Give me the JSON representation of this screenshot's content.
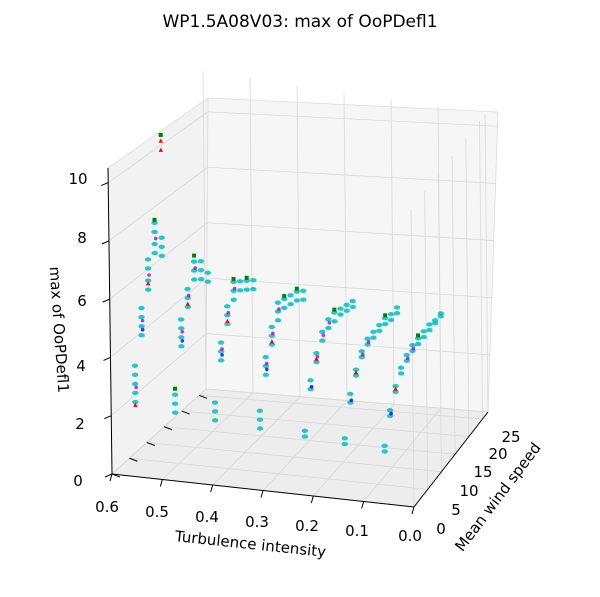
{
  "chart_data": {
    "type": "scatter",
    "projection": "3d",
    "title": "WP1.5A08V03: max of OoPDefl1",
    "xlabel": "Turbulence intensity",
    "ylabel": "Mean wind speed",
    "zlabel": "max of OoPDefl1",
    "xlim": [
      0.0,
      0.6
    ],
    "ylim": [
      0,
      27
    ],
    "zlim": [
      0,
      10.5
    ],
    "x_ticks": [
      "0.6",
      "0.5",
      "0.4",
      "0.3",
      "0.2",
      "0.1",
      "0.0"
    ],
    "y_ticks": [
      "0",
      "5",
      "10",
      "15",
      "20",
      "25"
    ],
    "z_ticks": [
      "0",
      "2",
      "4",
      "6",
      "8",
      "10"
    ],
    "grid": true,
    "series_colors": [
      "#00bfbf",
      "#bf00bf",
      "#008000",
      "#ff0000",
      "#0000ff"
    ],
    "series": [
      {
        "points": [
          [
            0.58,
            4,
            2.0
          ],
          [
            0.58,
            4,
            2.3
          ],
          [
            0.58,
            4,
            2.6
          ],
          [
            0.58,
            4,
            2.9
          ],
          [
            0.58,
            4,
            3.2
          ],
          [
            0.58,
            6,
            4.0
          ],
          [
            0.58,
            6,
            4.3
          ],
          [
            0.58,
            6,
            4.6
          ],
          [
            0.58,
            6,
            4.9
          ],
          [
            0.58,
            8,
            5.3
          ],
          [
            0.58,
            8,
            5.6
          ],
          [
            0.58,
            8,
            6.0
          ],
          [
            0.58,
            8,
            6.3
          ],
          [
            0.58,
            10,
            6.3
          ],
          [
            0.58,
            10,
            6.6
          ],
          [
            0.58,
            10,
            7.0
          ],
          [
            0.58,
            10,
            7.3
          ],
          [
            0.58,
            12,
            6.0
          ],
          [
            0.58,
            12,
            6.3
          ],
          [
            0.58,
            12,
            6.6
          ],
          [
            0.5,
            4,
            1.8
          ],
          [
            0.5,
            4,
            2.1
          ],
          [
            0.5,
            4,
            2.4
          ],
          [
            0.5,
            6,
            3.8
          ],
          [
            0.5,
            6,
            4.1
          ],
          [
            0.5,
            6,
            4.4
          ],
          [
            0.5,
            6,
            4.7
          ],
          [
            0.5,
            8,
            4.9
          ],
          [
            0.5,
            8,
            5.2
          ],
          [
            0.5,
            8,
            5.5
          ],
          [
            0.5,
            10,
            5.6
          ],
          [
            0.5,
            10,
            5.9
          ],
          [
            0.5,
            10,
            6.2
          ],
          [
            0.5,
            12,
            5.4
          ],
          [
            0.5,
            12,
            5.7
          ],
          [
            0.5,
            12,
            6.0
          ],
          [
            0.5,
            14,
            5.1
          ],
          [
            0.5,
            14,
            5.4
          ],
          [
            0.42,
            4,
            1.7
          ],
          [
            0.42,
            4,
            2.0
          ],
          [
            0.42,
            4,
            2.3
          ],
          [
            0.42,
            6,
            3.5
          ],
          [
            0.42,
            6,
            3.8
          ],
          [
            0.42,
            6,
            4.1
          ],
          [
            0.42,
            8,
            4.5
          ],
          [
            0.42,
            8,
            4.8
          ],
          [
            0.42,
            8,
            5.1
          ],
          [
            0.42,
            10,
            5.1
          ],
          [
            0.42,
            10,
            5.4
          ],
          [
            0.42,
            10,
            5.7
          ],
          [
            0.42,
            12,
            5.2
          ],
          [
            0.42,
            12,
            5.5
          ],
          [
            0.42,
            14,
            5.0
          ],
          [
            0.42,
            14,
            5.3
          ],
          [
            0.42,
            16,
            4.8
          ],
          [
            0.42,
            16,
            5.1
          ],
          [
            0.33,
            4,
            1.6
          ],
          [
            0.33,
            4,
            1.9
          ],
          [
            0.33,
            4,
            2.2
          ],
          [
            0.33,
            6,
            3.2
          ],
          [
            0.33,
            6,
            3.5
          ],
          [
            0.33,
            6,
            3.8
          ],
          [
            0.33,
            8,
            4.0
          ],
          [
            0.33,
            8,
            4.3
          ],
          [
            0.33,
            8,
            4.6
          ],
          [
            0.33,
            10,
            4.6
          ],
          [
            0.33,
            10,
            4.9
          ],
          [
            0.33,
            10,
            5.2
          ],
          [
            0.33,
            12,
            4.8
          ],
          [
            0.33,
            12,
            5.1
          ],
          [
            0.33,
            14,
            4.7
          ],
          [
            0.33,
            14,
            5.0
          ],
          [
            0.33,
            16,
            4.6
          ],
          [
            0.33,
            16,
            4.9
          ],
          [
            0.33,
            18,
            4.4
          ],
          [
            0.33,
            18,
            4.7
          ],
          [
            0.24,
            4,
            1.5
          ],
          [
            0.24,
            4,
            1.7
          ],
          [
            0.24,
            6,
            2.9
          ],
          [
            0.24,
            6,
            3.2
          ],
          [
            0.24,
            8,
            3.6
          ],
          [
            0.24,
            8,
            3.9
          ],
          [
            0.24,
            10,
            4.1
          ],
          [
            0.24,
            10,
            4.4
          ],
          [
            0.24,
            12,
            4.3
          ],
          [
            0.24,
            12,
            4.6
          ],
          [
            0.24,
            14,
            4.3
          ],
          [
            0.24,
            14,
            4.6
          ],
          [
            0.24,
            16,
            4.3
          ],
          [
            0.24,
            16,
            4.5
          ],
          [
            0.24,
            18,
            4.2
          ],
          [
            0.24,
            18,
            4.4
          ],
          [
            0.24,
            20,
            4.1
          ],
          [
            0.24,
            20,
            4.3
          ],
          [
            0.16,
            4,
            1.4
          ],
          [
            0.16,
            4,
            1.6
          ],
          [
            0.16,
            6,
            2.6
          ],
          [
            0.16,
            6,
            2.9
          ],
          [
            0.16,
            8,
            3.3
          ],
          [
            0.16,
            8,
            3.5
          ],
          [
            0.16,
            10,
            3.7
          ],
          [
            0.16,
            10,
            3.9
          ],
          [
            0.16,
            12,
            3.9
          ],
          [
            0.16,
            12,
            4.1
          ],
          [
            0.16,
            14,
            3.9
          ],
          [
            0.16,
            14,
            4.1
          ],
          [
            0.16,
            16,
            3.9
          ],
          [
            0.16,
            16,
            4.1
          ],
          [
            0.16,
            18,
            3.9
          ],
          [
            0.16,
            18,
            4.1
          ],
          [
            0.16,
            20,
            3.8
          ],
          [
            0.16,
            20,
            4.0
          ],
          [
            0.16,
            22,
            3.8
          ],
          [
            0.16,
            22,
            4.0
          ],
          [
            0.08,
            4,
            1.3
          ],
          [
            0.08,
            4,
            1.5
          ],
          [
            0.08,
            6,
            2.3
          ],
          [
            0.08,
            6,
            2.5
          ],
          [
            0.08,
            8,
            2.9
          ],
          [
            0.08,
            8,
            3.1
          ],
          [
            0.08,
            10,
            3.3
          ],
          [
            0.08,
            10,
            3.5
          ],
          [
            0.08,
            12,
            3.5
          ],
          [
            0.08,
            12,
            3.7
          ],
          [
            0.08,
            14,
            3.6
          ],
          [
            0.08,
            14,
            3.8
          ],
          [
            0.08,
            16,
            3.6
          ],
          [
            0.08,
            16,
            3.8
          ],
          [
            0.08,
            18,
            3.6
          ],
          [
            0.08,
            18,
            3.8
          ],
          [
            0.08,
            20,
            3.6
          ],
          [
            0.08,
            20,
            3.8
          ],
          [
            0.08,
            22,
            3.6
          ],
          [
            0.08,
            22,
            3.7
          ],
          [
            0.08,
            24,
            3.6
          ],
          [
            0.08,
            24,
            3.7
          ]
        ]
      },
      {
        "points": [
          [
            0.58,
            4,
            2.5
          ],
          [
            0.58,
            6,
            4.5
          ],
          [
            0.58,
            8,
            5.8
          ],
          [
            0.58,
            10,
            6.8
          ],
          [
            0.5,
            6,
            4.3
          ],
          [
            0.5,
            8,
            5.3
          ],
          [
            0.5,
            10,
            6.0
          ],
          [
            0.42,
            6,
            3.9
          ],
          [
            0.42,
            8,
            4.9
          ],
          [
            0.42,
            10,
            5.5
          ],
          [
            0.33,
            6,
            3.6
          ],
          [
            0.33,
            8,
            4.4
          ],
          [
            0.33,
            10,
            5.0
          ],
          [
            0.24,
            8,
            3.8
          ],
          [
            0.24,
            10,
            4.3
          ],
          [
            0.24,
            12,
            4.5
          ],
          [
            0.16,
            10,
            3.8
          ],
          [
            0.16,
            12,
            4.0
          ],
          [
            0.08,
            12,
            3.6
          ],
          [
            0.08,
            14,
            3.7
          ]
        ]
      },
      {
        "points": [
          [
            0.58,
            12,
            10.0
          ],
          [
            0.58,
            10,
            7.4
          ],
          [
            0.5,
            4,
            2.6
          ],
          [
            0.5,
            10,
            6.4
          ],
          [
            0.42,
            10,
            5.8
          ],
          [
            0.42,
            14,
            5.4
          ],
          [
            0.33,
            12,
            5.2
          ],
          [
            0.33,
            16,
            5.0
          ],
          [
            0.24,
            14,
            4.7
          ],
          [
            0.16,
            18,
            4.2
          ],
          [
            0.08,
            16,
            3.9
          ]
        ]
      },
      {
        "points": [
          [
            0.58,
            12,
            9.8
          ],
          [
            0.58,
            12,
            9.5
          ],
          [
            0.58,
            4,
            1.9
          ],
          [
            0.58,
            8,
            5.5
          ],
          [
            0.5,
            8,
            5.0
          ],
          [
            0.42,
            8,
            4.6
          ],
          [
            0.33,
            8,
            4.1
          ],
          [
            0.24,
            8,
            3.7
          ],
          [
            0.16,
            8,
            3.4
          ],
          [
            0.08,
            8,
            3.0
          ]
        ]
      },
      {
        "points": [
          [
            0.58,
            6,
            4.2
          ],
          [
            0.5,
            6,
            4.0
          ],
          [
            0.42,
            6,
            3.7
          ],
          [
            0.33,
            6,
            3.4
          ],
          [
            0.24,
            6,
            3.0
          ],
          [
            0.16,
            6,
            2.7
          ],
          [
            0.08,
            6,
            2.4
          ]
        ]
      }
    ]
  }
}
